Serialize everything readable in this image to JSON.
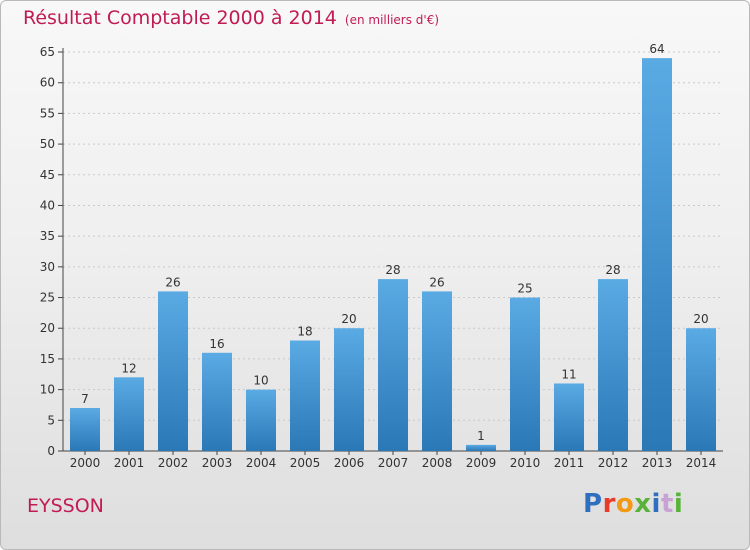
{
  "title": "Résultat Comptable 2000 à 2014",
  "unit": "(en milliers d'€)",
  "place": "EYSSON",
  "logo": "Proxiti",
  "colors": {
    "title": "#c11b55",
    "bar_top": "#5aaae4",
    "bar_bottom": "#2a78b6",
    "logo": [
      "#2f6fc0",
      "#e83b2a",
      "#f29a14",
      "#59b33a",
      "#2f6fc0",
      "#c8a2d6",
      "#59b33a"
    ]
  },
  "chart_data": {
    "type": "bar",
    "categories": [
      "2000",
      "2001",
      "2002",
      "2003",
      "2004",
      "2005",
      "2006",
      "2007",
      "2008",
      "2009",
      "2010",
      "2011",
      "2012",
      "2013",
      "2014"
    ],
    "values": [
      7,
      12,
      26,
      16,
      10,
      18,
      20,
      28,
      26,
      1,
      25,
      11,
      28,
      64,
      20
    ],
    "ylim": [
      0,
      65
    ],
    "yticks": [
      0,
      5,
      10,
      15,
      20,
      25,
      30,
      35,
      40,
      45,
      50,
      55,
      60,
      65
    ],
    "grid": true,
    "data_labels": true
  }
}
